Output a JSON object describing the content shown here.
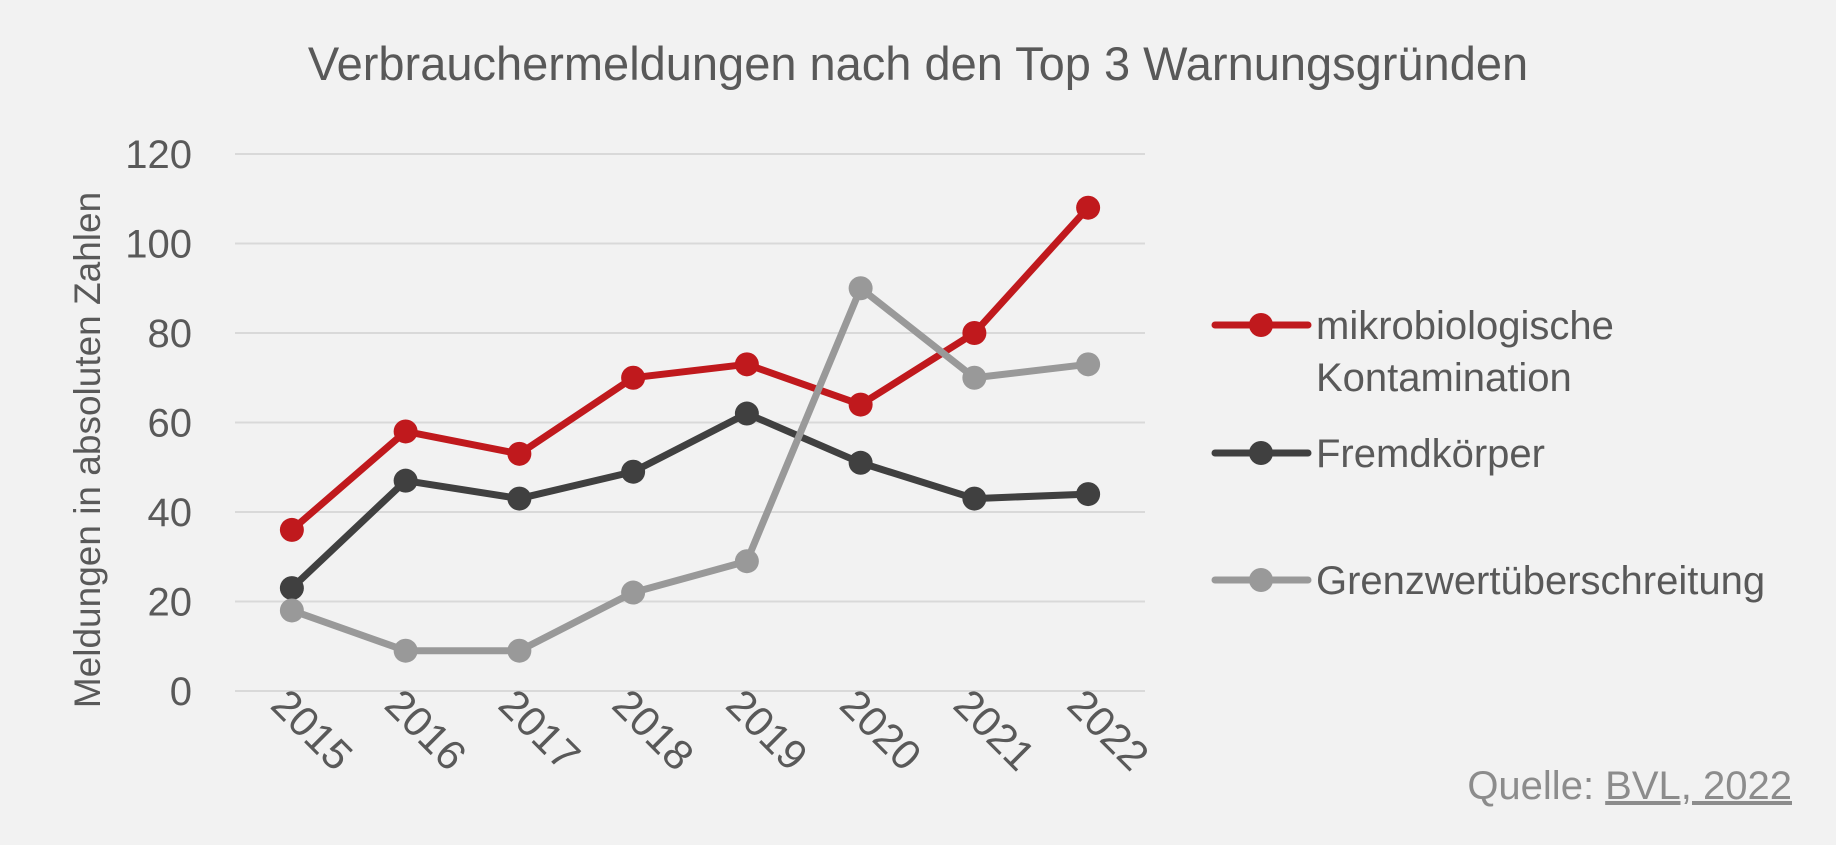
{
  "chart_data": {
    "type": "line",
    "title": "Verbrauchermeldungen nach den Top 3 Warnungsgründen",
    "xlabel": "",
    "ylabel": "Meldungen in absoluten Zahlen",
    "categories": [
      "2015",
      "2016",
      "2017",
      "2018",
      "2019",
      "2020",
      "2021",
      "2022"
    ],
    "ylim": [
      0,
      120
    ],
    "yticks": [
      "0",
      "20",
      "40",
      "60",
      "80",
      "100",
      "120"
    ],
    "grid": true,
    "legend_position": "right",
    "series": [
      {
        "name_lines": [
          "mikrobiologische",
          "Kontamination"
        ],
        "color": "#c0191d",
        "values": [
          36,
          58,
          53,
          70,
          73,
          64,
          80,
          108
        ]
      },
      {
        "name_lines": [
          "Fremdkörper"
        ],
        "color": "#404040",
        "values": [
          23,
          47,
          43,
          49,
          62,
          51,
          43,
          44
        ]
      },
      {
        "name_lines": [
          "Grenzwertüberschreitung"
        ],
        "color": "#999999",
        "values": [
          18,
          9,
          9,
          22,
          29,
          90,
          70,
          73
        ]
      }
    ]
  },
  "source": {
    "prefix": "Quelle: ",
    "link_text": "BVL, 2022"
  }
}
